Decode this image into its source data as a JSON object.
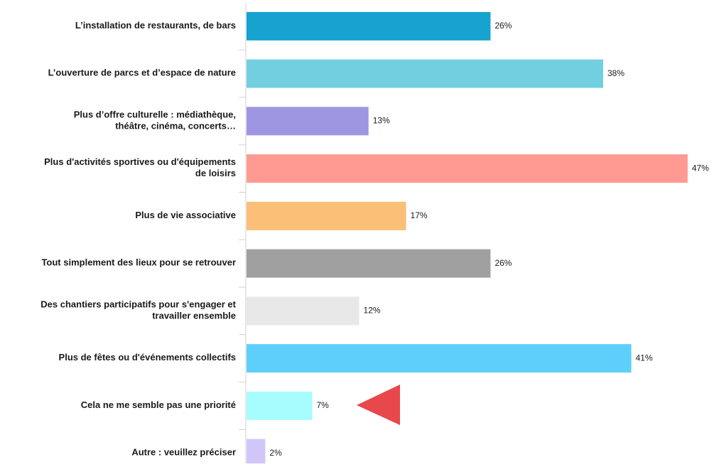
{
  "chart_data": {
    "type": "barh",
    "categories": [
      "L’installation de restaurants, de bars",
      "L’ouverture de parcs et d’espace de nature",
      "Plus d’offre culturelle : médiathèque,\nthéâtre, cinéma, concerts…",
      "Plus d'activités sportives ou d'équipements\nde loisirs",
      "Plus de vie associative",
      "Tout simplement des lieux pour se retrouver",
      "Des chantiers participatifs pour s'engager et\ntravailler ensemble",
      "Plus de fêtes ou d'événements collectifs",
      "Cela ne me semble pas une priorité",
      "Autre : veuillez préciser"
    ],
    "values": [
      26,
      38,
      13,
      47,
      17,
      26,
      12,
      41,
      7,
      2
    ],
    "value_labels": [
      "26%",
      "38%",
      "13%",
      "47%",
      "17%",
      "26%",
      "12%",
      "41%",
      "7%",
      "2%"
    ],
    "colors": [
      "#17a2d0",
      "#72cfe0",
      "#9f96e2",
      "#fe9a92",
      "#fbbf77",
      "#a0a0a0",
      "#e8e8e8",
      "#5ecffa",
      "#a7fdfd",
      "#d0c6fa"
    ]
  }
}
